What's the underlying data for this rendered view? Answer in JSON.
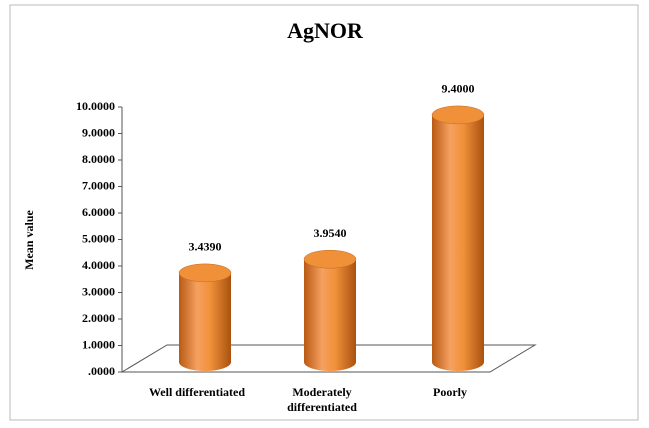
{
  "chart_data": {
    "type": "bar3d",
    "title": "AgNOR",
    "y_label": "Mean value",
    "categories": [
      "Well differentiated",
      "Moderately differentiated",
      "Poorly"
    ],
    "values": [
      3.439,
      3.954,
      9.4
    ],
    "value_labels": [
      "3.4390",
      "3.9540",
      "9.4000"
    ],
    "color": "#f0913a",
    "ylim": [
      0,
      10
    ],
    "yticks": [
      {
        "value": 0,
        "label": ".0000"
      },
      {
        "value": 1,
        "label": "1.0000"
      },
      {
        "value": 2,
        "label": "2.0000"
      },
      {
        "value": 3,
        "label": "3.0000"
      },
      {
        "value": 4,
        "label": "4.0000"
      },
      {
        "value": 5,
        "label": "5.0000"
      },
      {
        "value": 6,
        "label": "6.0000"
      },
      {
        "value": 7,
        "label": "7.0000"
      },
      {
        "value": 8,
        "label": "8.0000"
      },
      {
        "value": 9,
        "label": "9.0000"
      },
      {
        "value": 10,
        "label": "10.0000"
      }
    ],
    "grid": false
  }
}
